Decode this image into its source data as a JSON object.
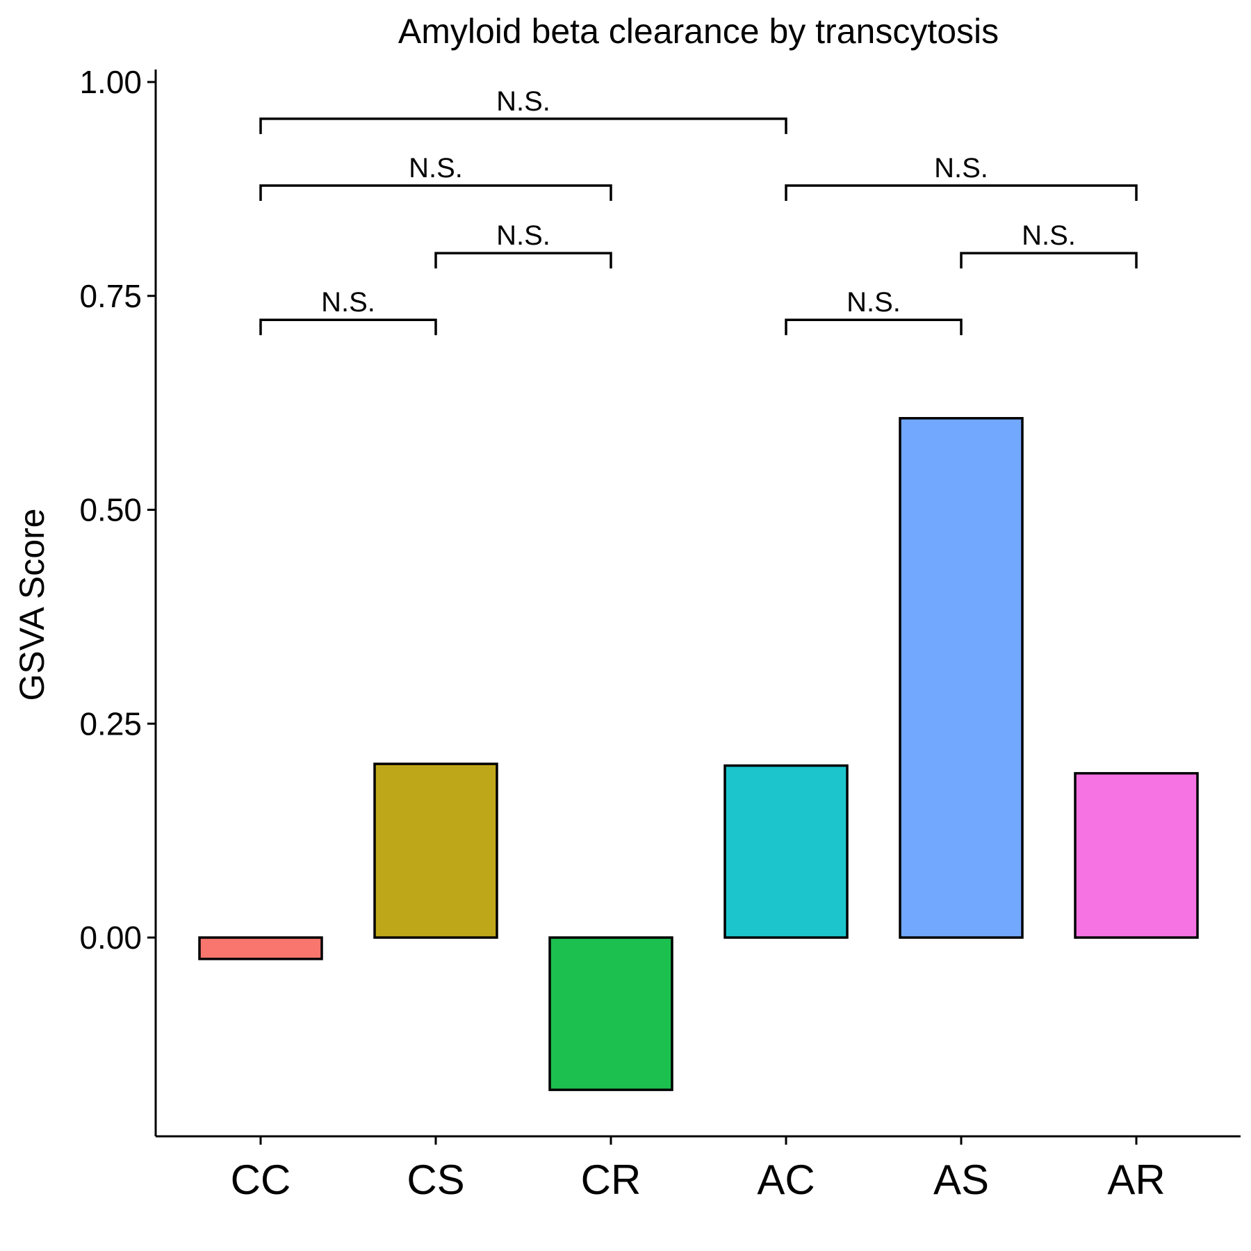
{
  "chart_data": {
    "type": "bar",
    "title": "Amyloid beta clearance by transcytosis",
    "xlabel": "",
    "ylabel": "GSVA Score",
    "categories": [
      "CC",
      "CS",
      "CR",
      "AC",
      "AS",
      "AR"
    ],
    "values": [
      -0.025,
      0.203,
      -0.178,
      0.201,
      0.607,
      0.192
    ],
    "colors": [
      "#F8766D",
      "#BFA71A",
      "#1CC04E",
      "#1CC4CC",
      "#73A8FF",
      "#F573E2"
    ],
    "ylim": [
      -0.232,
      1.015
    ],
    "yticks": [
      "0.00",
      "0.25",
      "0.50",
      "0.75",
      "1.00"
    ],
    "grid": false,
    "legend": "none",
    "comparisons": [
      {
        "from": "CC",
        "to": "CS",
        "label": "N.S.",
        "y": 0.722
      },
      {
        "from": "CS",
        "to": "CR",
        "label": "N.S.",
        "y": 0.8
      },
      {
        "from": "CC",
        "to": "CR",
        "label": "N.S.",
        "y": 0.879
      },
      {
        "from": "CC",
        "to": "AC",
        "label": "N.S.",
        "y": 0.957
      },
      {
        "from": "AC",
        "to": "AS",
        "label": "N.S.",
        "y": 0.722
      },
      {
        "from": "AS",
        "to": "AR",
        "label": "N.S.",
        "y": 0.8
      },
      {
        "from": "AC",
        "to": "AR",
        "label": "N.S.",
        "y": 0.879
      }
    ]
  }
}
